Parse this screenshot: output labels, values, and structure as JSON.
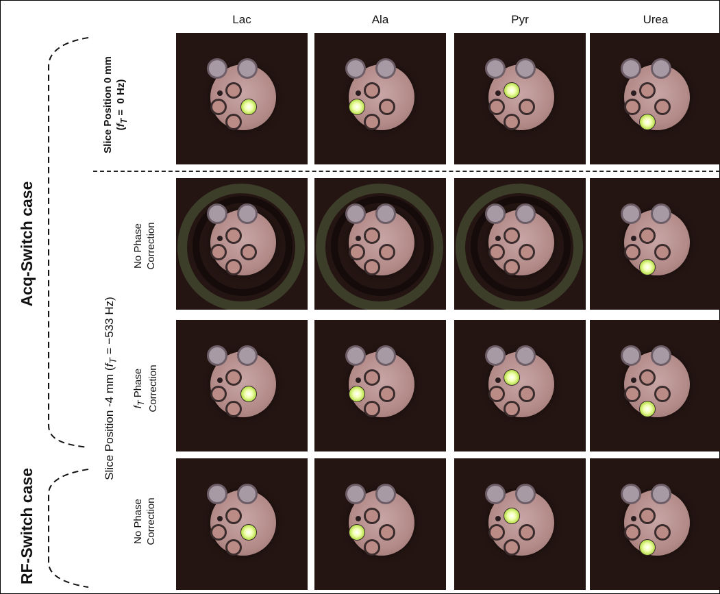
{
  "columns": [
    "Lac",
    "Ala",
    "Pyr",
    "Urea"
  ],
  "group_labels": {
    "acq": "Acq-Switch case",
    "rf": "RF-Switch case"
  },
  "slice_labels": {
    "top_line1": "Slice Position 0 mm",
    "top_line2": "(f_T = 0 Hz)",
    "bottom": "Slice Position -4 mm (f_T = −533 Hz)"
  },
  "row_labels": {
    "no_phase_line1": "No Phase",
    "no_phase_line2": "Correction",
    "ft_phase_line1": "f_T Phase",
    "ft_phase_line2": "Correction",
    "rf_no_phase_line1": "No Phase",
    "rf_no_phase_line2": "Correction"
  },
  "colors": {
    "background_panel": "#241512",
    "hotspot": "#dff58a",
    "dash": "#222222"
  },
  "panels": [
    {
      "row": "slice-0mm",
      "column": "Lac",
      "hot_vial": "right"
    },
    {
      "row": "slice-0mm",
      "column": "Ala",
      "hot_vial": "left"
    },
    {
      "row": "slice-0mm",
      "column": "Pyr",
      "hot_vial": "center"
    },
    {
      "row": "slice-0mm",
      "column": "Urea",
      "hot_vial": "bottom"
    },
    {
      "row": "acq-no-phase",
      "column": "Lac",
      "hot_vial": "none"
    },
    {
      "row": "acq-no-phase",
      "column": "Ala",
      "hot_vial": "none"
    },
    {
      "row": "acq-no-phase",
      "column": "Pyr",
      "hot_vial": "none"
    },
    {
      "row": "acq-no-phase",
      "column": "Urea",
      "hot_vial": "bottom"
    },
    {
      "row": "acq-ft-phase",
      "column": "Lac",
      "hot_vial": "right"
    },
    {
      "row": "acq-ft-phase",
      "column": "Ala",
      "hot_vial": "left"
    },
    {
      "row": "acq-ft-phase",
      "column": "Pyr",
      "hot_vial": "center"
    },
    {
      "row": "acq-ft-phase",
      "column": "Urea",
      "hot_vial": "bottom"
    },
    {
      "row": "rf-no-phase",
      "column": "Lac",
      "hot_vial": "right"
    },
    {
      "row": "rf-no-phase",
      "column": "Ala",
      "hot_vial": "left"
    },
    {
      "row": "rf-no-phase",
      "column": "Pyr",
      "hot_vial": "center"
    },
    {
      "row": "rf-no-phase",
      "column": "Urea",
      "hot_vial": "bottom"
    }
  ]
}
